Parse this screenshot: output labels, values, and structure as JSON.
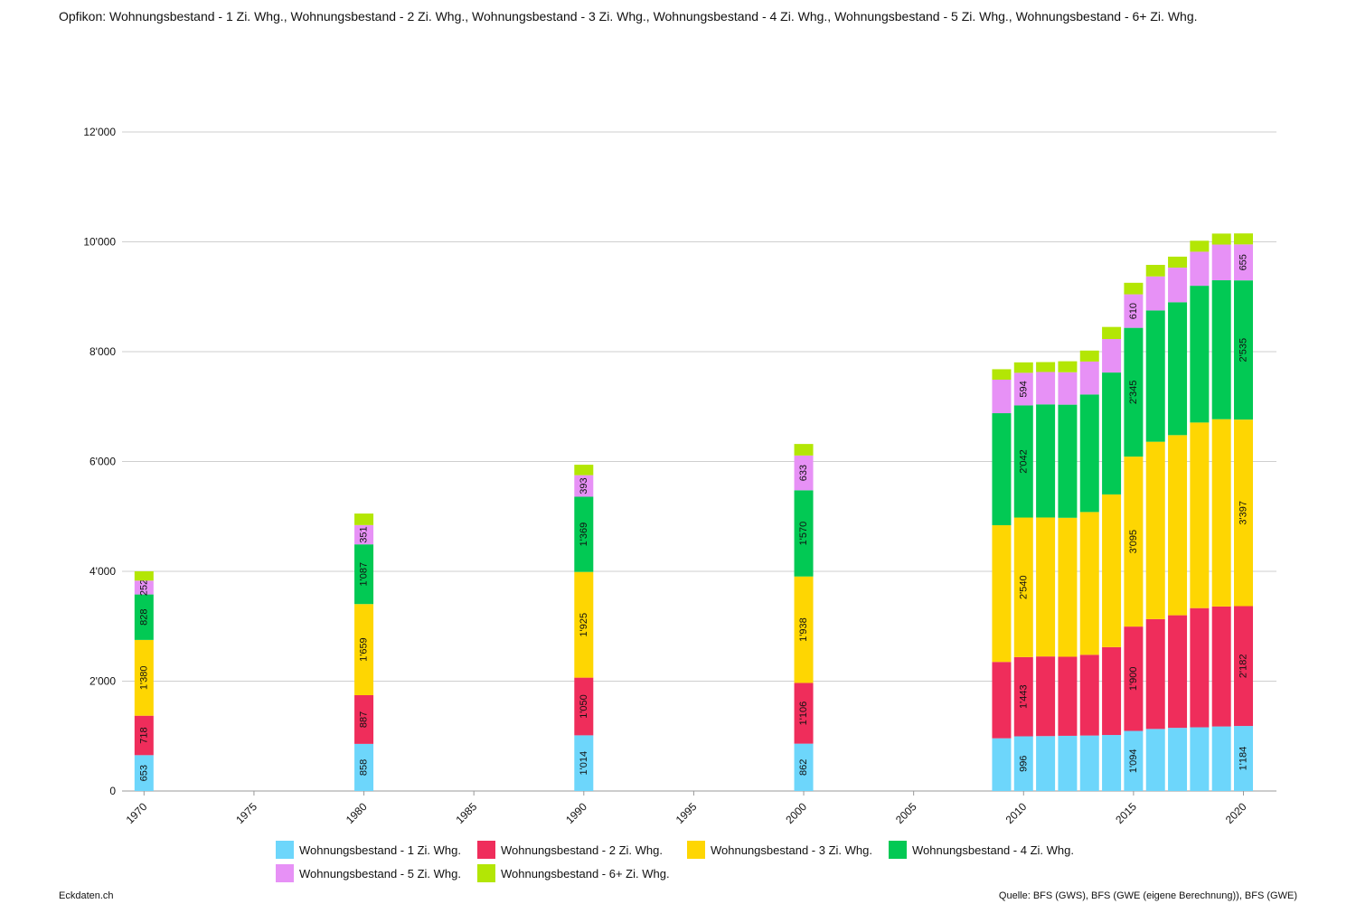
{
  "title": "Opfikon: Wohnungsbestand - 1 Zi. Whg., Wohnungsbestand - 2 Zi. Whg., Wohnungsbestand - 3 Zi. Whg., Wohnungsbestand - 4 Zi. Whg., Wohnungsbestand - 5 Zi. Whg., Wohnungsbestand - 6+ Zi. Whg.",
  "footer": {
    "left": "Eckdaten.ch",
    "right": "Quelle: BFS (GWS), BFS (GWE (eigene Berechnung)), BFS (GWE)"
  },
  "chart_data": {
    "type": "bar",
    "stacked": true,
    "x": [
      1970,
      1980,
      1990,
      2000,
      2009,
      2010,
      2011,
      2012,
      2013,
      2014,
      2015,
      2016,
      2017,
      2018,
      2019,
      2020
    ],
    "x_ticks": [
      "1970",
      "1975",
      "1980",
      "1985",
      "1990",
      "1995",
      "2000",
      "2005",
      "2010",
      "2015",
      "2020"
    ],
    "x_tick_values": [
      1970,
      1975,
      1980,
      1985,
      1990,
      1995,
      2000,
      2005,
      2010,
      2015,
      2020
    ],
    "y_ticks": [
      "0",
      "2'000",
      "4'000",
      "6'000",
      "8'000",
      "10'000",
      "12'000"
    ],
    "y_tick_values": [
      0,
      2000,
      4000,
      6000,
      8000,
      10000,
      12000
    ],
    "ylim": [
      0,
      12000
    ],
    "xlim": [
      1969,
      2021.5
    ],
    "grid": "horizontal",
    "legend_position": "bottom",
    "series": [
      {
        "name": "Wohnungsbestand - 1 Zi. Whg.",
        "color": "#6dd6fb",
        "values": [
          653,
          858,
          1014,
          862,
          960,
          996,
          1000,
          1005,
          1010,
          1020,
          1094,
          1130,
          1150,
          1160,
          1175,
          1184
        ]
      },
      {
        "name": "Wohnungsbestand - 2 Zi. Whg.",
        "color": "#ef2d5b",
        "values": [
          718,
          887,
          1050,
          1106,
          1390,
          1443,
          1450,
          1440,
          1470,
          1600,
          1900,
          2000,
          2050,
          2170,
          2185,
          2182
        ]
      },
      {
        "name": "Wohnungsbestand - 3 Zi. Whg.",
        "color": "#fed602",
        "values": [
          1380,
          1659,
          1925,
          1938,
          2490,
          2540,
          2530,
          2530,
          2600,
          2780,
          3095,
          3230,
          3280,
          3380,
          3410,
          3397
        ]
      },
      {
        "name": "Wohnungsbestand - 4 Zi. Whg.",
        "color": "#02c954",
        "values": [
          828,
          1087,
          1369,
          1570,
          2040,
          2042,
          2060,
          2060,
          2140,
          2220,
          2345,
          2390,
          2420,
          2490,
          2530,
          2535
        ]
      },
      {
        "name": "Wohnungsbestand - 5 Zi. Whg.",
        "color": "#e791f6",
        "values": [
          252,
          351,
          393,
          633,
          610,
          594,
          590,
          590,
          600,
          610,
          610,
          620,
          630,
          620,
          650,
          655
        ]
      },
      {
        "name": "Wohnungsbestand - 6+ Zi. Whg.",
        "color": "#b3e605",
        "values": [
          170,
          210,
          190,
          210,
          190,
          190,
          180,
          200,
          200,
          220,
          210,
          210,
          200,
          200,
          200,
          200
        ]
      }
    ],
    "labeled_years": [
      1970,
      1980,
      1990,
      2000,
      2010,
      2015,
      2020
    ],
    "labeled_series_count": 5
  }
}
